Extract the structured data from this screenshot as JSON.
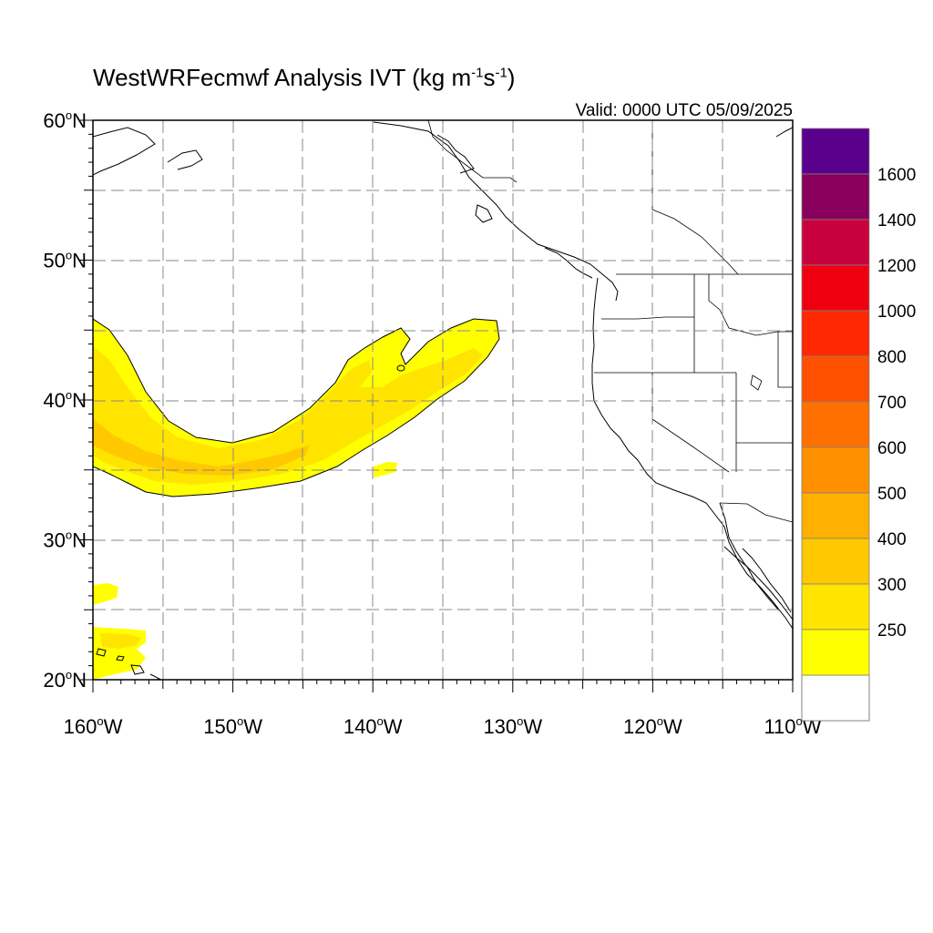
{
  "title": {
    "main": "WestWRFecmwf Analysis IVT (kg m",
    "exp1": "-1",
    "mid": "s",
    "exp2": "-1",
    "close": ")"
  },
  "valid": "Valid: 0000 UTC 05/09/2025",
  "lat_labels": [
    "60",
    "50",
    "40",
    "30",
    "20"
  ],
  "lon_labels": [
    "160",
    "150",
    "140",
    "130",
    "120",
    "110"
  ],
  "lat_suffix": "N",
  "lon_suffix": "W",
  "degree_symbol": "o",
  "map_extent": {
    "lon": [
      -160,
      -110
    ],
    "lat": [
      20,
      60
    ]
  },
  "colorbar": {
    "labels": [
      "250",
      "300",
      "400",
      "500",
      "600",
      "700",
      "800",
      "1000",
      "1200",
      "1400",
      "1600"
    ],
    "colors": [
      "#ffff00",
      "#ffe400",
      "#ffc800",
      "#ffb000",
      "#ff9000",
      "#ff7000",
      "#ff5000",
      "#ff2800",
      "#ee0010",
      "#c8003c",
      "#88005c",
      "#5a008c"
    ]
  },
  "ivt_colors": {
    "c250": "#ffff00",
    "c300": "#ffe400",
    "c400": "#ffc800"
  }
}
